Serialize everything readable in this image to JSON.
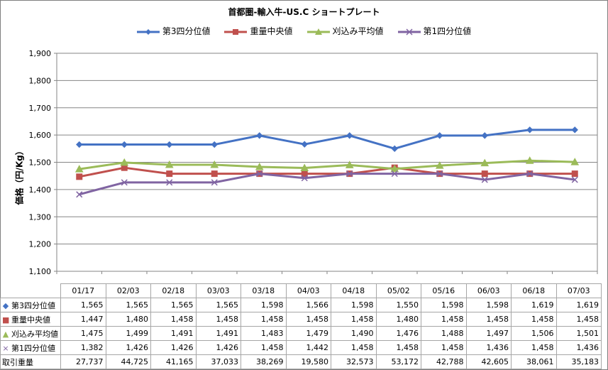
{
  "chart_data": {
    "type": "line",
    "title": "首都圏-輸入牛-US.C ショートプレート",
    "ylabel": "価格（円/Kg）",
    "ylim": [
      1100,
      1900
    ],
    "yticks": [
      "1,100",
      "1,200",
      "1,300",
      "1,400",
      "1,500",
      "1,600",
      "1,700",
      "1,800",
      "1,900"
    ],
    "categories": [
      "01/17",
      "02/03",
      "02/18",
      "03/03",
      "03/18",
      "04/03",
      "04/18",
      "05/02",
      "05/16",
      "06/03",
      "06/18",
      "07/03"
    ],
    "legend_position": "top",
    "series": [
      {
        "name": "第3四分位値",
        "color": "#4472c4",
        "marker": "diamond",
        "values": [
          1565,
          1565,
          1565,
          1565,
          1598,
          1566,
          1598,
          1550,
          1598,
          1598,
          1619,
          1619
        ],
        "labels": [
          "1,565",
          "1,565",
          "1,565",
          "1,565",
          "1,598",
          "1,566",
          "1,598",
          "1,550",
          "1,598",
          "1,598",
          "1,619",
          "1,619"
        ]
      },
      {
        "name": "重量中央値",
        "color": "#c0504d",
        "marker": "square",
        "values": [
          1447,
          1480,
          1458,
          1458,
          1458,
          1458,
          1458,
          1480,
          1458,
          1458,
          1458,
          1458
        ],
        "labels": [
          "1,447",
          "1,480",
          "1,458",
          "1,458",
          "1,458",
          "1,458",
          "1,458",
          "1,480",
          "1,458",
          "1,458",
          "1,458",
          "1,458"
        ]
      },
      {
        "name": "刈込み平均値",
        "color": "#9bbb59",
        "marker": "triangle",
        "values": [
          1475,
          1499,
          1491,
          1491,
          1483,
          1479,
          1490,
          1476,
          1488,
          1497,
          1506,
          1501
        ],
        "labels": [
          "1,475",
          "1,499",
          "1,491",
          "1,491",
          "1,483",
          "1,479",
          "1,490",
          "1,476",
          "1,488",
          "1,497",
          "1,506",
          "1,501"
        ]
      },
      {
        "name": "第1四分位値",
        "color": "#8064a2",
        "marker": "x",
        "values": [
          1382,
          1426,
          1426,
          1426,
          1458,
          1442,
          1458,
          1458,
          1458,
          1436,
          1458,
          1436
        ],
        "labels": [
          "1,382",
          "1,426",
          "1,426",
          "1,426",
          "1,458",
          "1,442",
          "1,458",
          "1,458",
          "1,458",
          "1,436",
          "1,458",
          "1,436"
        ]
      }
    ],
    "extra_row": {
      "name": "取引重量",
      "labels": [
        "27,737",
        "44,725",
        "41,165",
        "37,033",
        "38,269",
        "19,580",
        "32,573",
        "53,172",
        "42,788",
        "42,605",
        "38,061",
        "35,183"
      ]
    }
  }
}
